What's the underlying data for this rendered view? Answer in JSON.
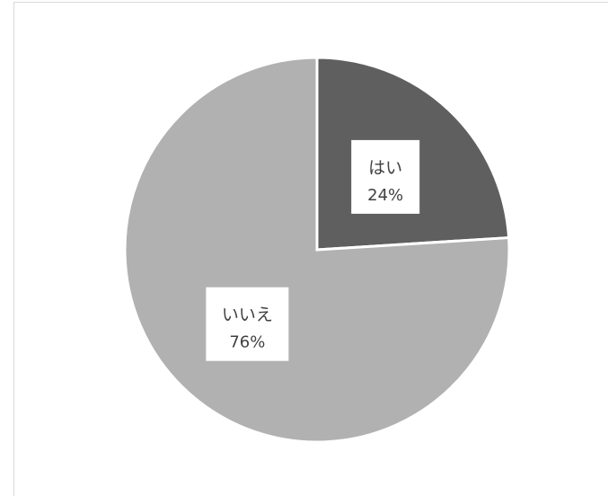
{
  "chart_data": {
    "type": "pie",
    "categories": [
      "はい",
      "いいえ"
    ],
    "values": [
      24,
      76
    ],
    "value_labels": [
      "24%",
      "76%"
    ],
    "colors": [
      "#5f5f5f",
      "#b1b1b1"
    ],
    "start_angle_deg": 0,
    "direction": "clockwise",
    "legend": "none",
    "data_labels": "inside"
  }
}
